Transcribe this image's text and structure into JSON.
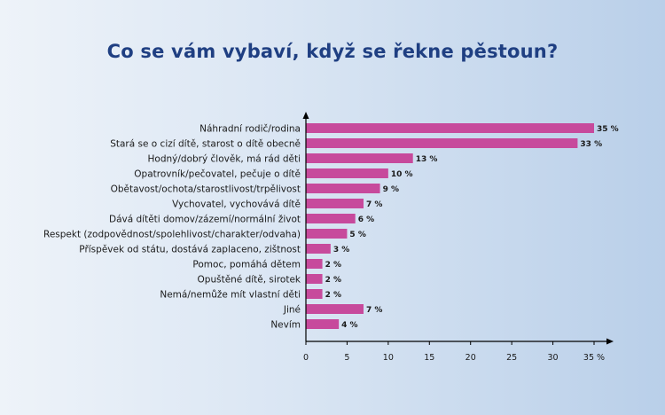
{
  "chart_data": {
    "type": "bar",
    "orientation": "horizontal",
    "title": "Co se vám vybaví, když se řekne pěstoun?",
    "categories": [
      "Náhradní rodič/rodina",
      "Stará se o cizí dítě, starost o dítě obecně",
      "Hodný/dobrý člověk, má rád děti",
      "Opatrovník/pečovatel, pečuje o dítě",
      "Obětavost/ochota/starostlivost/trpělivost",
      "Vychovatel, vychovává dítě",
      "Dává dítěti domov/zázemí/normální život",
      "Respekt (zodpovědnost/spolehlivost/charakter/odvaha)",
      "Příspěvek od státu, dostává zaplaceno, zištnost",
      "Pomoc, pomáhá dětem",
      "Opuštěné dítě, sirotek",
      "Nemá/nemůže mít vlastní děti",
      "Jiné",
      "Nevím"
    ],
    "values": [
      35,
      33,
      13,
      10,
      9,
      7,
      6,
      5,
      3,
      2,
      2,
      2,
      7,
      4
    ],
    "value_labels": [
      "35 %",
      "33 %",
      "13 %",
      "10 %",
      "9 %",
      "7 %",
      "6 %",
      "5 %",
      "3 %",
      "2 %",
      "2 %",
      "2 %",
      "7 %",
      "4 %"
    ],
    "xticks": [
      "0",
      "5",
      "10",
      "15",
      "20",
      "25",
      "30",
      "35 %"
    ],
    "xlim": [
      0,
      35
    ],
    "bar_color": "#c74a9c",
    "grid": false
  }
}
